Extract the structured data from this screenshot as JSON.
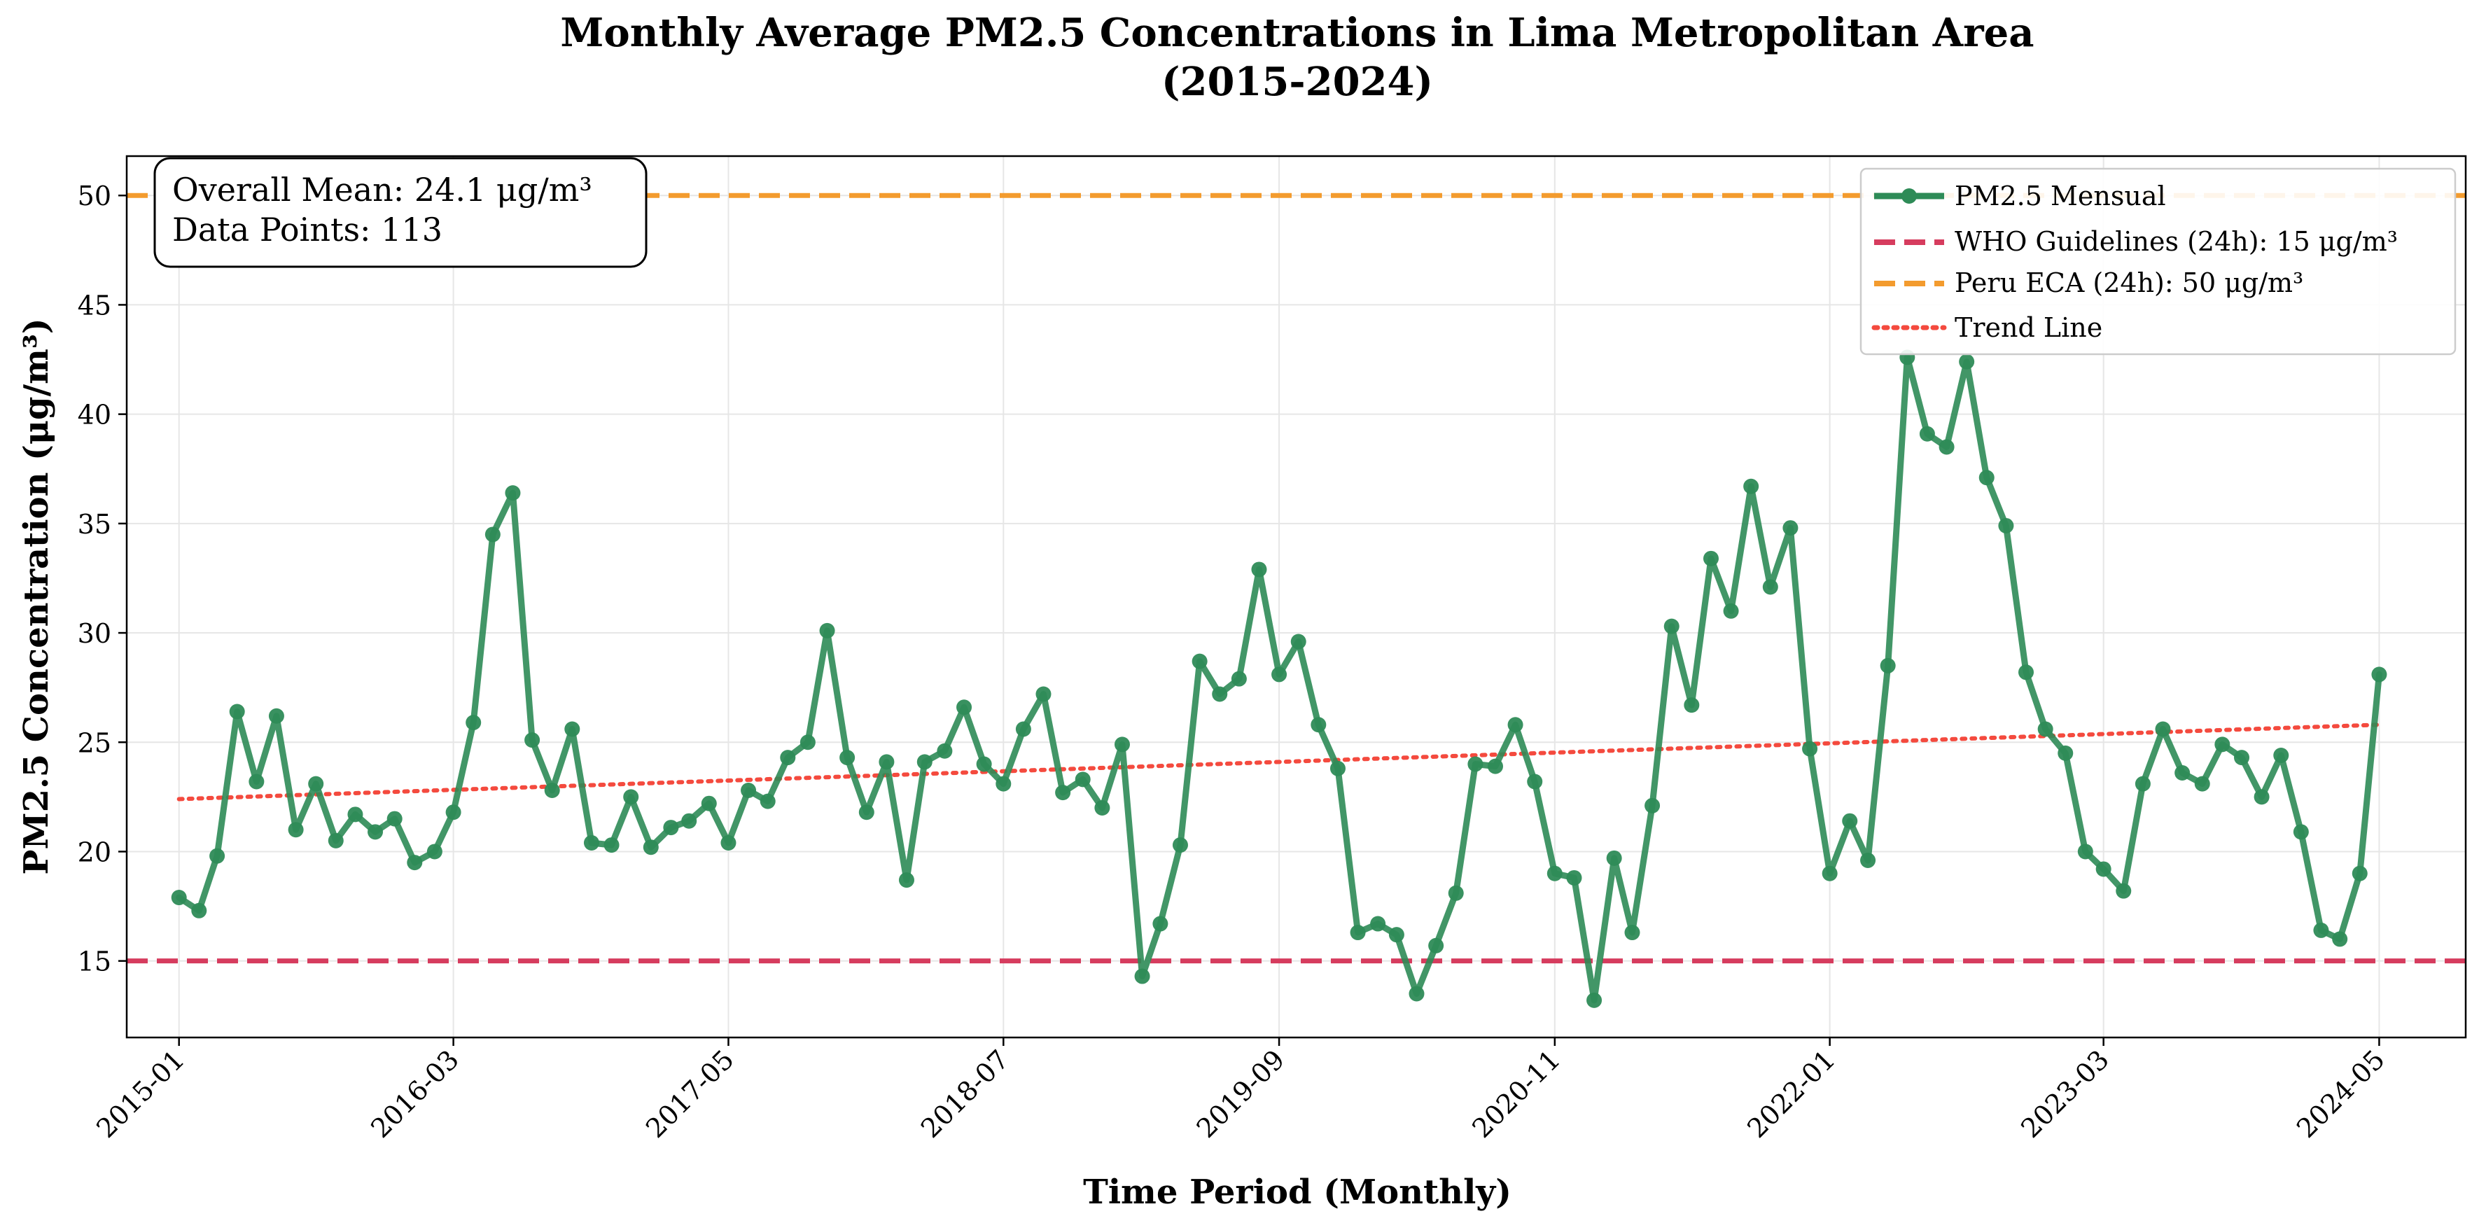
{
  "chart_data": {
    "type": "line",
    "title_line1": "Monthly Average PM2.5 Concentrations in Lima Metropolitan Area",
    "title_line2": "(2015-2024)",
    "xlabel": "Time Period (Monthly)",
    "ylabel": "PM2.5 Concentration (μg/m³)",
    "ylim": [
      11.5,
      51.8
    ],
    "xlim": [
      "2014-10-12",
      "2024-09-12"
    ],
    "grid": true,
    "legend_position": "upper-right",
    "yticks": [
      15,
      20,
      25,
      30,
      35,
      40,
      45,
      50
    ],
    "xticks": [
      "2015-01",
      "2016-03",
      "2017-05",
      "2018-07",
      "2019-09",
      "2020-11",
      "2022-01",
      "2023-03",
      "2024-05"
    ],
    "series": [
      {
        "name": "PM2.5 Mensual",
        "kind": "line-marker",
        "color": "#2e8b57",
        "start": "2015-01",
        "values": [
          17.9,
          17.3,
          19.8,
          26.4,
          23.2,
          26.2,
          21.0,
          23.1,
          20.5,
          21.7,
          20.9,
          21.5,
          19.5,
          20.0,
          21.8,
          25.9,
          34.5,
          36.4,
          25.1,
          22.8,
          25.6,
          20.4,
          20.3,
          22.5,
          20.2,
          21.1,
          21.4,
          22.2,
          20.4,
          22.8,
          22.3,
          24.3,
          25.0,
          30.1,
          24.3,
          21.8,
          24.1,
          18.7,
          24.1,
          24.6,
          26.6,
          24.0,
          23.1,
          25.6,
          27.2,
          22.7,
          23.3,
          22.0,
          24.9,
          14.3,
          16.7,
          20.3,
          28.7,
          27.2,
          27.9,
          32.9,
          28.1,
          29.6,
          25.8,
          23.8,
          16.3,
          16.7,
          16.2,
          13.5,
          15.7,
          18.1,
          24.0,
          23.9,
          25.8,
          23.2,
          19.0,
          18.8,
          13.2,
          19.7,
          16.3,
          22.1,
          30.3,
          26.7,
          33.4,
          31.0,
          36.7,
          32.1,
          34.8,
          24.7,
          19.0,
          21.4,
          19.6,
          28.5,
          42.6,
          39.1,
          38.5,
          42.4,
          37.1,
          34.9,
          28.2,
          25.6,
          24.5,
          20.0,
          19.2,
          18.2,
          23.1,
          25.6,
          23.6,
          23.1,
          24.9,
          24.3,
          22.5,
          24.4,
          20.9,
          16.4,
          16.0,
          19.0,
          28.1
        ]
      },
      {
        "name": "WHO Guidelines (24h): 15 μg/m³",
        "kind": "hline",
        "value": 15,
        "color": "#d63c5e"
      },
      {
        "name": "Peru ECA (24h): 50 μg/m³",
        "kind": "hline",
        "value": 50,
        "color": "#f39b2e"
      },
      {
        "name": "Trend Line",
        "kind": "trend",
        "from": 22.4,
        "to": 25.8,
        "color": "#f44a3e"
      }
    ],
    "annotation": {
      "line1": "Overall Mean: 24.1 μg/m³",
      "line2": "Data Points: 113"
    }
  }
}
